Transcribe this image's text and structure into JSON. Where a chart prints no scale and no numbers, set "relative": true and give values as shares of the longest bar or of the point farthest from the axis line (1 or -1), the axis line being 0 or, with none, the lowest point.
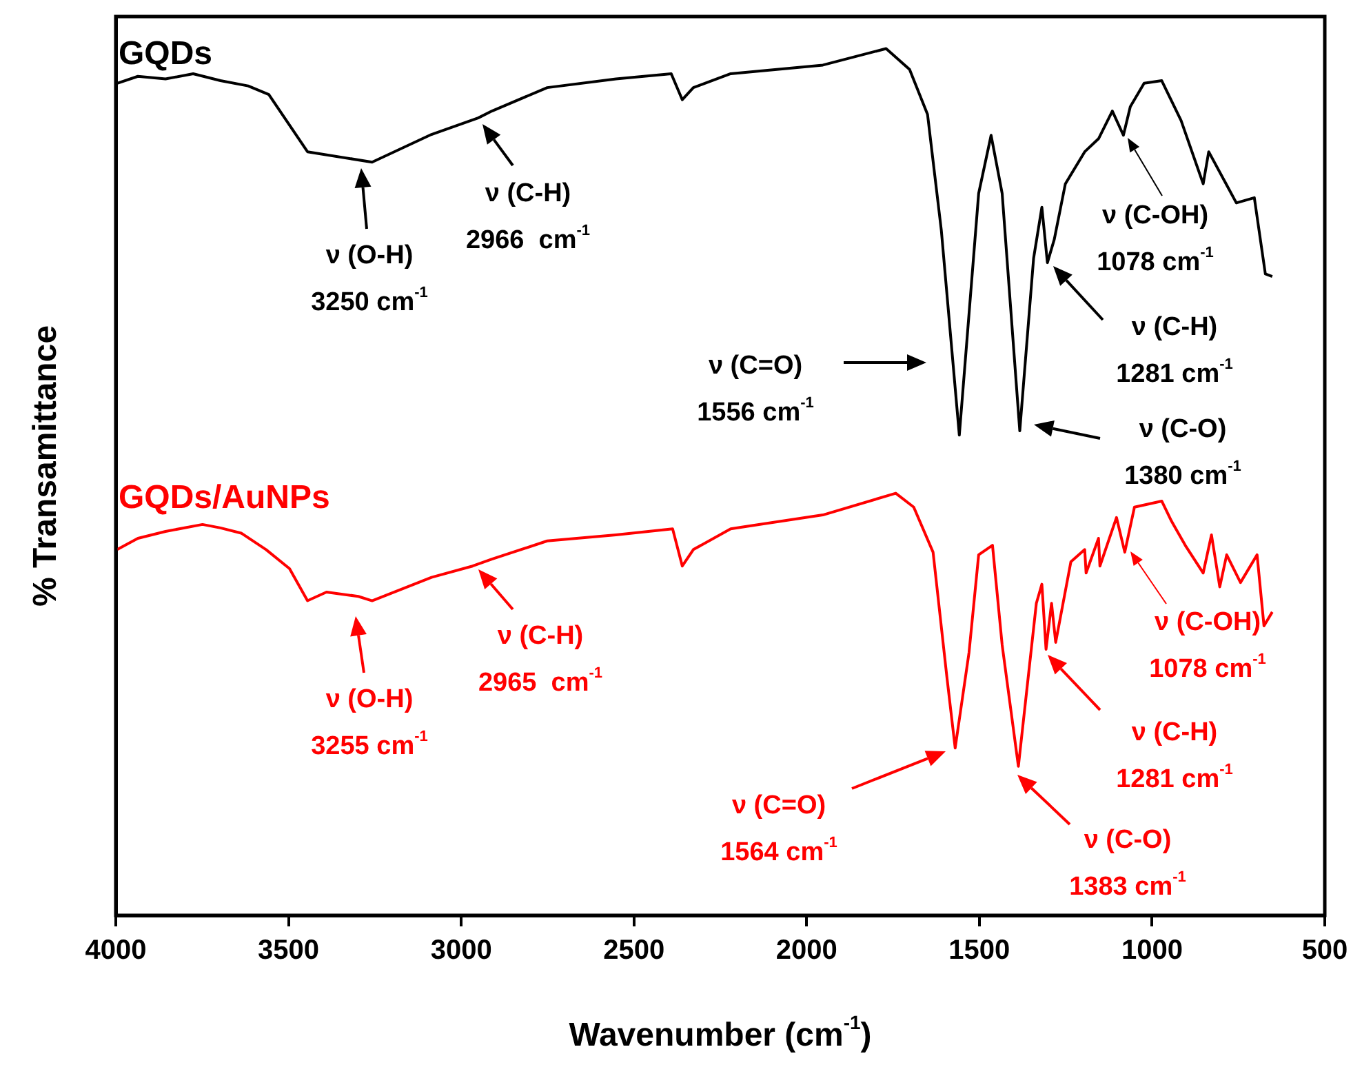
{
  "chart_data": {
    "type": "line",
    "xlabel": "Wavenumber (cm$^{-1}$)",
    "ylabel": "% Transamittance",
    "relative": true,
    "xlim": [
      4000,
      500
    ],
    "xticks": [
      4000,
      3500,
      3000,
      2500,
      2000,
      1500,
      1000,
      500
    ],
    "tick_labels": "x",
    "grid": false,
    "legend": false,
    "marker": "none",
    "line_style": "solid",
    "series": [
      {
        "name": "GQDs",
        "color": "#000000",
        "x": [
          3996,
          3936,
          3856,
          3776,
          3697,
          3617,
          3557,
          3445,
          3258,
          3086,
          2951,
          2911,
          2751,
          2552,
          2392,
          2360,
          2328,
          2220,
          1953,
          1770,
          1702,
          1650,
          1610,
          1558,
          1502,
          1466,
          1434,
          1383,
          1343,
          1319,
          1303,
          1283,
          1251,
          1195,
          1155,
          1115,
          1083,
          1063,
          1023,
          972,
          916,
          852,
          836,
          756,
          704,
          672,
          652
        ],
        "values": [
          0.96,
          0.968,
          0.965,
          0.971,
          0.963,
          0.957,
          0.947,
          0.881,
          0.869,
          0.901,
          0.92,
          0.928,
          0.955,
          0.965,
          0.971,
          0.941,
          0.955,
          0.971,
          0.981,
          1.0,
          0.976,
          0.924,
          0.79,
          0.554,
          0.833,
          0.9,
          0.833,
          0.559,
          0.758,
          0.817,
          0.753,
          0.78,
          0.844,
          0.881,
          0.896,
          0.928,
          0.9,
          0.933,
          0.96,
          0.963,
          0.917,
          0.844,
          0.881,
          0.822,
          0.828,
          0.74,
          0.737
        ]
      },
      {
        "name": "GQDs/AuNPs",
        "color": "#ff0000",
        "x": [
          3996,
          3936,
          3856,
          3749,
          3697,
          3637,
          3565,
          3497,
          3445,
          3390,
          3298,
          3258,
          3086,
          2967,
          2911,
          2751,
          2552,
          2388,
          2360,
          2328,
          2220,
          1953,
          1742,
          1690,
          1634,
          1594,
          1570,
          1530,
          1502,
          1462,
          1434,
          1387,
          1335,
          1319,
          1307,
          1291,
          1279,
          1235,
          1195,
          1191,
          1155,
          1151,
          1103,
          1079,
          1051,
          972,
          944,
          904,
          852,
          828,
          804,
          784,
          744,
          696,
          676,
          652
        ],
        "values": [
          0.422,
          0.435,
          0.443,
          0.451,
          0.447,
          0.441,
          0.422,
          0.4,
          0.363,
          0.373,
          0.368,
          0.363,
          0.39,
          0.403,
          0.411,
          0.432,
          0.439,
          0.446,
          0.403,
          0.422,
          0.446,
          0.462,
          0.487,
          0.471,
          0.419,
          0.275,
          0.193,
          0.303,
          0.416,
          0.427,
          0.312,
          0.172,
          0.36,
          0.382,
          0.307,
          0.36,
          0.315,
          0.408,
          0.422,
          0.395,
          0.435,
          0.403,
          0.459,
          0.419,
          0.471,
          0.478,
          0.455,
          0.427,
          0.395,
          0.439,
          0.379,
          0.416,
          0.384,
          0.416,
          0.334,
          0.35
        ]
      }
    ],
    "annotations": [
      "ν (O-H)\n3250 cm$^{-1}$",
      "ν (C-H)\n2966  cm$^{-1}$",
      "ν (C=O)\n1556 cm$^{-1}$",
      "ν (C-O)\n1380 cm$^{-1}$",
      "ν (C-H)\n1281 cm$^{-1}$",
      "ν (C-OH)\n1078 cm$^{-1}$",
      "ν (O-H)\n3255 cm$^{-1}$",
      "ν (C-H)\n2965  cm$^{-1}$",
      "ν (C=O)\n1564 cm$^{-1}$",
      "ν (C-O)\n1383 cm$^{-1}$",
      "ν (C-H)\n1281 cm$^{-1}$",
      "ν (C-OH)\n1078 cm$^{-1}$"
    ]
  }
}
